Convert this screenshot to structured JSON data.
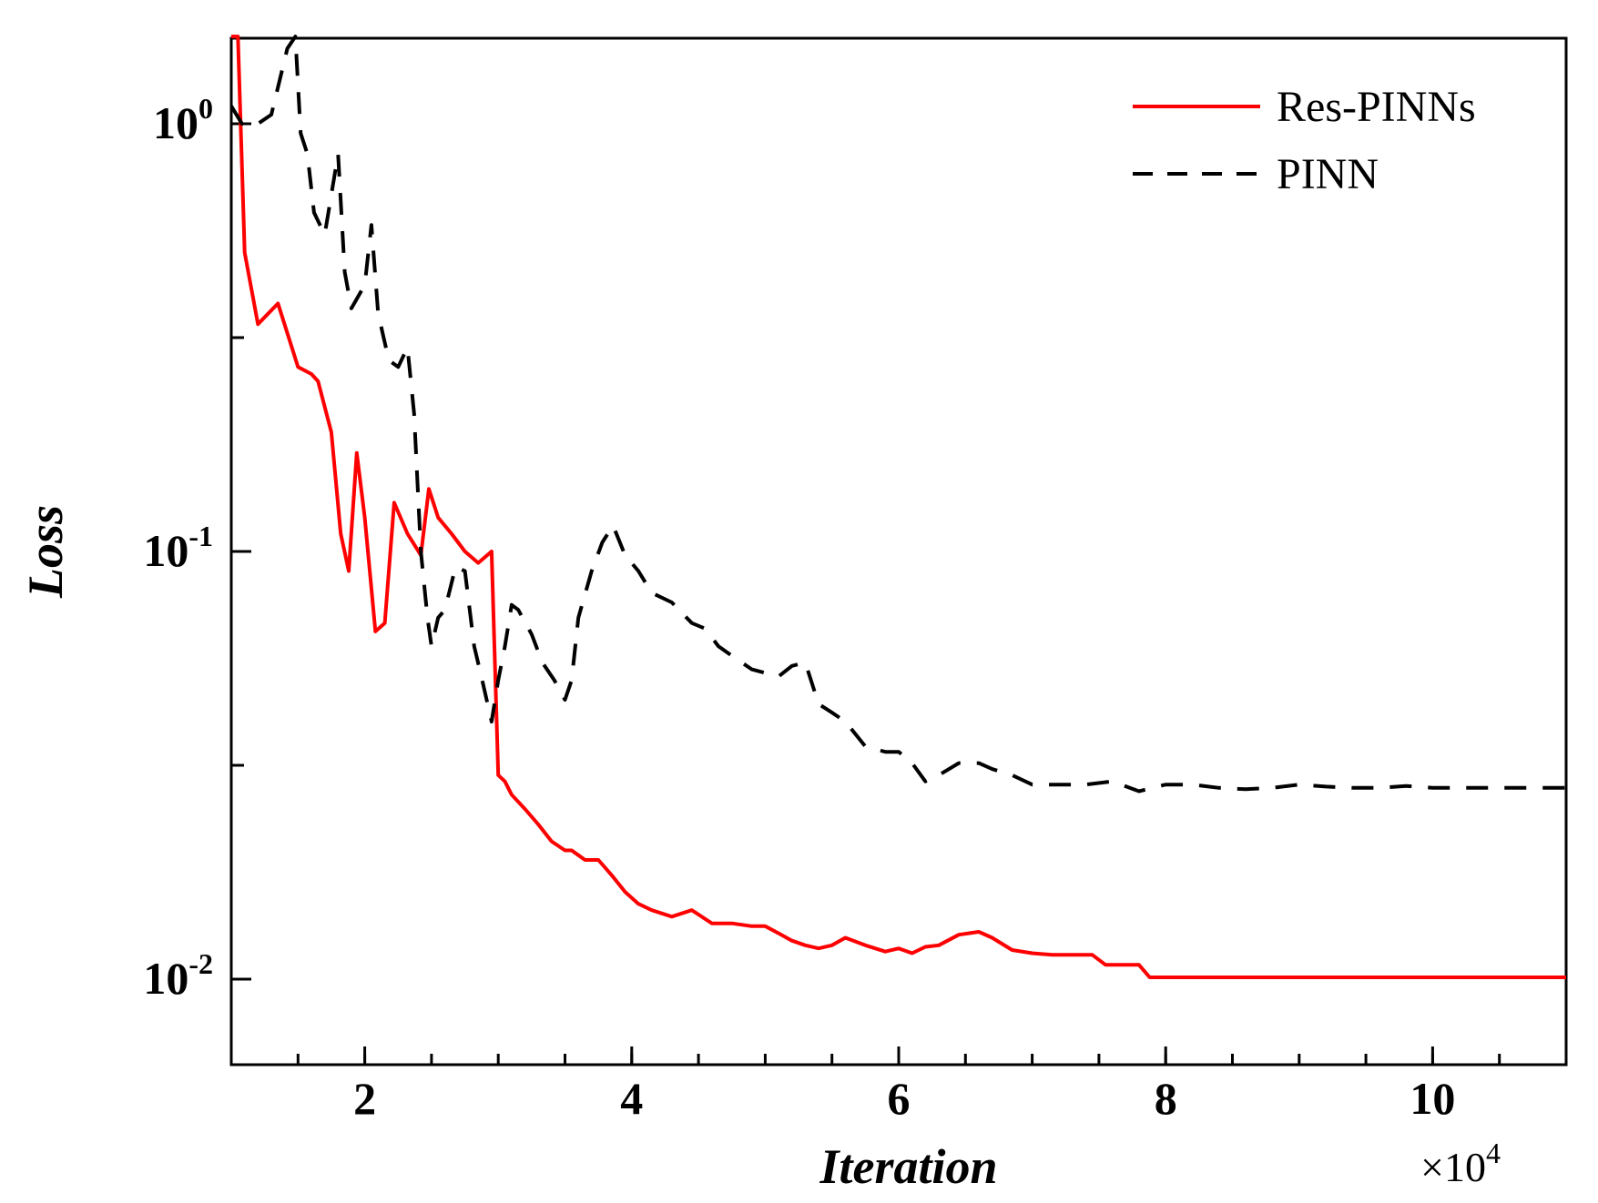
{
  "chart_data": {
    "type": "line",
    "title": "",
    "xlabel": "Iteration",
    "ylabel": "Loss",
    "x_multiplier_label": "×10",
    "x_multiplier_exp": "4",
    "xlim": [
      1,
      11
    ],
    "ylim_log10": [
      -2.2,
      0.2
    ],
    "yscale": "log",
    "xticks": [
      2,
      4,
      6,
      8,
      10
    ],
    "xtick_labels": [
      "2",
      "4",
      "6",
      "8",
      "10"
    ],
    "yticks_major": [
      {
        "exp": 0,
        "base": "10",
        "sup": "0"
      },
      {
        "exp": -1,
        "base": "10",
        "sup": "-1"
      },
      {
        "exp": -2,
        "base": "10",
        "sup": "-2"
      }
    ],
    "yticks_minor_log10": [
      -0.5,
      -1.5
    ],
    "legend_position": "top-right",
    "series": [
      {
        "name": "Res-PINNs",
        "color": "#ff0000",
        "style": "solid",
        "x": [
          1.0,
          1.05,
          1.1,
          1.2,
          1.35,
          1.5,
          1.6,
          1.65,
          1.75,
          1.82,
          1.88,
          1.94,
          2.0,
          2.08,
          2.15,
          2.22,
          2.32,
          2.42,
          2.48,
          2.55,
          2.65,
          2.75,
          2.85,
          2.95,
          3.0,
          3.05,
          3.1,
          3.2,
          3.3,
          3.4,
          3.5,
          3.55,
          3.65,
          3.75,
          3.85,
          3.95,
          4.05,
          4.15,
          4.3,
          4.45,
          4.6,
          4.75,
          4.9,
          5.0,
          5.1,
          5.2,
          5.3,
          5.4,
          5.5,
          5.6,
          5.75,
          5.9,
          6.0,
          6.1,
          6.2,
          6.3,
          6.45,
          6.6,
          6.7,
          6.85,
          7.0,
          7.15,
          7.3,
          7.45,
          7.55,
          7.6,
          7.7,
          7.8,
          7.88,
          8.2,
          8.6,
          9.0,
          9.5,
          10.0,
          10.5,
          11.0
        ],
        "y": [
          1.6,
          1.6,
          0.5,
          0.34,
          0.38,
          0.27,
          0.26,
          0.25,
          0.19,
          0.11,
          0.09,
          0.17,
          0.12,
          0.065,
          0.068,
          0.13,
          0.11,
          0.098,
          0.14,
          0.12,
          0.11,
          0.1,
          0.094,
          0.1,
          0.03,
          0.029,
          0.027,
          0.025,
          0.023,
          0.021,
          0.02,
          0.02,
          0.019,
          0.019,
          0.0175,
          0.016,
          0.015,
          0.0145,
          0.014,
          0.0145,
          0.0135,
          0.0135,
          0.0133,
          0.0133,
          0.0128,
          0.0123,
          0.012,
          0.0118,
          0.012,
          0.0125,
          0.012,
          0.0116,
          0.0118,
          0.0115,
          0.0119,
          0.012,
          0.0127,
          0.0129,
          0.0125,
          0.0117,
          0.0115,
          0.0114,
          0.0114,
          0.0114,
          0.0108,
          0.0108,
          0.0108,
          0.0108,
          0.0101,
          0.0101,
          0.0101,
          0.0101,
          0.0101,
          0.0101,
          0.0101,
          0.0101
        ]
      },
      {
        "name": "PINN",
        "color": "#000000",
        "style": "dashed",
        "x": [
          1.0,
          1.08,
          1.2,
          1.3,
          1.42,
          1.48,
          1.52,
          1.57,
          1.62,
          1.7,
          1.8,
          1.85,
          1.9,
          2.0,
          2.05,
          2.1,
          2.18,
          2.25,
          2.32,
          2.37,
          2.42,
          2.47,
          2.5,
          2.55,
          2.6,
          2.68,
          2.75,
          2.82,
          2.88,
          2.95,
          3.0,
          3.05,
          3.1,
          3.15,
          3.25,
          3.33,
          3.42,
          3.5,
          3.55,
          3.6,
          3.7,
          3.78,
          3.86,
          3.95,
          4.05,
          4.15,
          4.3,
          4.45,
          4.55,
          4.65,
          4.75,
          4.9,
          5.0,
          5.1,
          5.2,
          5.3,
          5.4,
          5.5,
          5.6,
          5.75,
          5.9,
          6.0,
          6.1,
          6.2,
          6.3,
          6.45,
          6.6,
          6.7,
          6.85,
          7.0,
          7.2,
          7.4,
          7.6,
          7.8,
          8.0,
          8.2,
          8.4,
          8.6,
          8.8,
          9.0,
          9.2,
          9.4,
          9.6,
          9.8,
          10.0,
          10.2,
          10.5,
          10.8,
          11.0
        ],
        "y": [
          1.1,
          1.0,
          1.0,
          1.05,
          1.5,
          1.6,
          0.95,
          0.85,
          0.62,
          0.55,
          0.85,
          0.45,
          0.37,
          0.42,
          0.58,
          0.36,
          0.28,
          0.27,
          0.3,
          0.21,
          0.1,
          0.07,
          0.06,
          0.07,
          0.073,
          0.092,
          0.09,
          0.06,
          0.05,
          0.04,
          0.05,
          0.06,
          0.075,
          0.073,
          0.064,
          0.055,
          0.05,
          0.045,
          0.05,
          0.07,
          0.09,
          0.105,
          0.115,
          0.098,
          0.09,
          0.08,
          0.076,
          0.068,
          0.066,
          0.06,
          0.057,
          0.053,
          0.052,
          0.051,
          0.054,
          0.055,
          0.044,
          0.042,
          0.04,
          0.035,
          0.034,
          0.034,
          0.032,
          0.029,
          0.03,
          0.032,
          0.032,
          0.031,
          0.03,
          0.0285,
          0.0285,
          0.0285,
          0.029,
          0.0275,
          0.0285,
          0.0285,
          0.028,
          0.0278,
          0.028,
          0.0285,
          0.0282,
          0.028,
          0.028,
          0.0283,
          0.028,
          0.028,
          0.028,
          0.028,
          0.028
        ]
      }
    ]
  }
}
